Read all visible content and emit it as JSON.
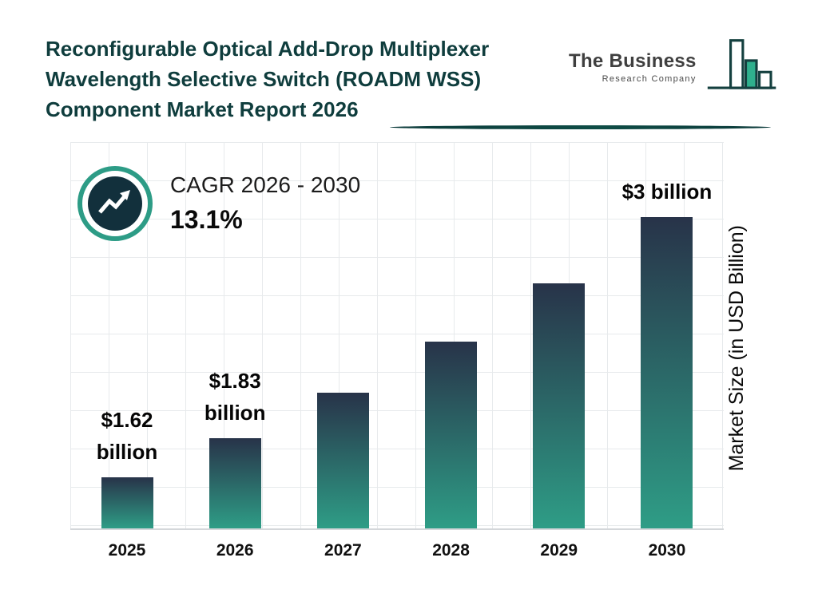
{
  "header": {
    "title_lines": [
      "Reconfigurable Optical Add-Drop Multiplexer",
      "Wavelength Selective Switch (ROADM WSS)",
      "Component Market Report 2026"
    ]
  },
  "brand": {
    "name": "The Business",
    "subname": "Research Company"
  },
  "cagr": {
    "label": "CAGR 2026 - 2030",
    "value": "13.1%"
  },
  "chart_data": {
    "type": "bar",
    "categories": [
      "2025",
      "2026",
      "2027",
      "2028",
      "2029",
      "2030"
    ],
    "values": [
      1.62,
      1.83,
      2.07,
      2.34,
      2.65,
      3.0
    ],
    "bar_labels": [
      "$1.62 billion",
      "$1.83 billion",
      "",
      "",
      "",
      "$3 billion"
    ],
    "bar_label_lines": [
      [
        "$1.62",
        "billion"
      ],
      [
        "$1.83",
        "billion"
      ],
      [],
      [],
      [],
      [
        "$3 billion"
      ]
    ],
    "xlabel": "",
    "ylabel": "Market Size (in USD Billion)",
    "ylim": [
      1.35,
      3.4
    ],
    "grid": true,
    "legend": false,
    "colors": {
      "bar_top": "#283349",
      "bar_bottom": "#2e9d86",
      "title": "#0f3d3d",
      "accent_ring": "#2d9c86",
      "badge_inner": "#12303c"
    }
  }
}
